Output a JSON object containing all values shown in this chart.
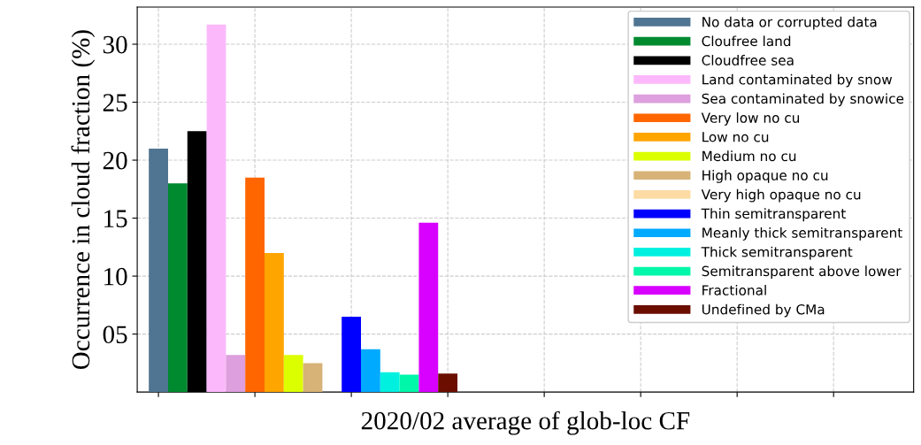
{
  "chart_data": {
    "type": "bar",
    "xlabel": "2020/02 average of glob-loc CF",
    "ylabel": "Occurrence in cloud fraction (%)",
    "categories": [
      null
    ],
    "ylim": [
      0,
      33.2
    ],
    "yticks": [
      {
        "value": 5,
        "label": "05"
      },
      10,
      15,
      20,
      25,
      30
    ],
    "grid": true,
    "legend": "top right",
    "series": [
      {
        "name": "No data or corrupted data",
        "color": "#4f7592",
        "values": [
          21.0
        ]
      },
      {
        "name": "Cloufree land",
        "color": "#008a30",
        "values": [
          18.0
        ]
      },
      {
        "name": "Cloudfree sea",
        "color": "#000000",
        "values": [
          22.5
        ]
      },
      {
        "name": "Land contaminated by snow",
        "color": "#fbb9fb",
        "values": [
          31.7
        ]
      },
      {
        "name": "Sea contaminated by snowice",
        "color": "#dd9fdd",
        "values": [
          3.2
        ]
      },
      {
        "name": "Very low no cu",
        "color": "#ff6600",
        "values": [
          18.5
        ]
      },
      {
        "name": "Low no cu",
        "color": "#ffa500",
        "values": [
          12.0
        ]
      },
      {
        "name": "Medium no cu",
        "color": "#dcff00",
        "values": [
          3.2
        ]
      },
      {
        "name": "High opaque no cu",
        "color": "#d7b377",
        "values": [
          2.5
        ]
      },
      {
        "name": "Very high opaque no cu",
        "color": "#fcdba5",
        "values": [
          0
        ]
      },
      {
        "name": "Thin semitransparent",
        "color": "#0000ff",
        "values": [
          6.5
        ]
      },
      {
        "name": "Meanly thick semitransparent",
        "color": "#00aaff",
        "values": [
          3.7
        ]
      },
      {
        "name": "Thick semitransparent",
        "color": "#00f0e0",
        "values": [
          1.7
        ]
      },
      {
        "name": "Semitransparent above lower",
        "color": "#00f7a9",
        "values": [
          1.5
        ]
      },
      {
        "name": "Fractional",
        "color": "#d800ff",
        "values": [
          14.6
        ]
      },
      {
        "name": "Undefined by CMa",
        "color": "#6b0e00",
        "values": [
          1.6
        ]
      }
    ]
  }
}
